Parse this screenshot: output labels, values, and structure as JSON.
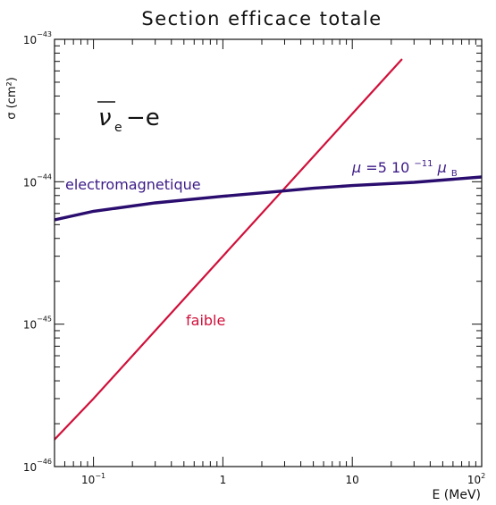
{
  "chart_data": {
    "type": "line",
    "title": "Section efficace totale",
    "xlabel": "E (MeV)",
    "ylabel": "σ (cm²)",
    "x_scale": "log",
    "y_scale": "log",
    "xlim": [
      0.05,
      100
    ],
    "ylim": [
      1e-46,
      1e-43
    ],
    "grid": false,
    "x_ticks": [
      {
        "value": 0.1,
        "base": "10",
        "exp": "−1"
      },
      {
        "value": 1,
        "base": "1",
        "exp": ""
      },
      {
        "value": 10,
        "base": "10",
        "exp": ""
      },
      {
        "value": 100,
        "base": "10",
        "exp": "2"
      }
    ],
    "y_ticks": [
      {
        "value": 1e-46,
        "base": "10",
        "exp": "−46"
      },
      {
        "value": 1e-45,
        "base": "10",
        "exp": "−45"
      },
      {
        "value": 1e-44,
        "base": "10",
        "exp": "−44"
      },
      {
        "value": 1e-43,
        "base": "10",
        "exp": "−43"
      }
    ],
    "process_label": {
      "nu": "ν",
      "sub": "e",
      "rest": "−e"
    },
    "annotations": {
      "electromagnetique": "electromagnetique",
      "faible": "faible",
      "mu_formula": {
        "mu": "μ",
        "eq": "=5 10",
        "exp": "−11",
        "mub": "μ",
        "sub": "B"
      }
    },
    "series": [
      {
        "name": "faible",
        "color": "#d0103a",
        "x": [
          0.05,
          0.1,
          1,
          10,
          24
        ],
        "y": [
          1.55e-46,
          3e-46,
          3e-45,
          3e-44,
          7.2e-44
        ]
      },
      {
        "name": "electromagnetique",
        "color": "#2a0d6e",
        "x": [
          0.05,
          0.1,
          0.3,
          1,
          2.5,
          5,
          10,
          30,
          100
        ],
        "y": [
          5.4e-45,
          6.2e-45,
          7.1e-45,
          7.9e-45,
          8.5e-45,
          9e-45,
          9.4e-45,
          9.9e-45,
          1.08e-44
        ]
      }
    ]
  }
}
